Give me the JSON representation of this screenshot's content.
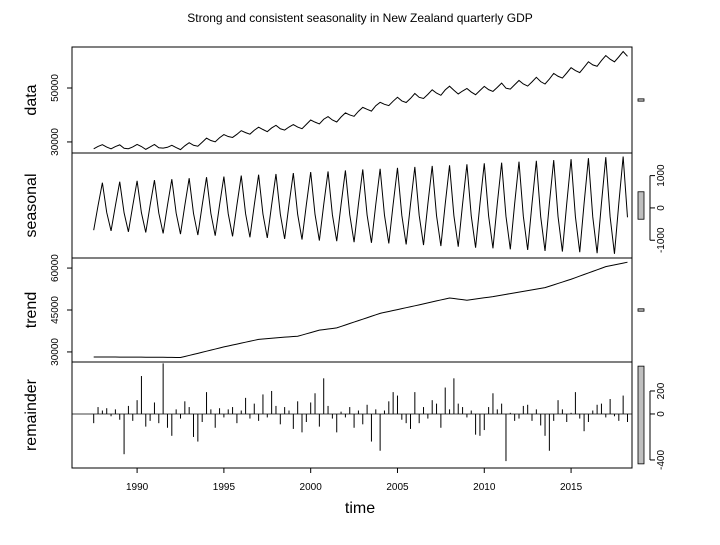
{
  "chart_data": {
    "type": "stl",
    "title": "Strong and consistent seasonality in New Zealand quarterly GDP",
    "xlabel": "time",
    "xlim": [
      1986.25,
      2018.51
    ],
    "xticks": [
      1990,
      1995,
      2000,
      2005,
      2010,
      2015
    ],
    "x": [
      1987.5,
      1987.75,
      1988,
      1988.25,
      1988.5,
      1988.75,
      1989,
      1989.25,
      1989.5,
      1989.75,
      1990,
      1990.25,
      1990.5,
      1990.75,
      1991,
      1991.25,
      1991.5,
      1991.75,
      1992,
      1992.25,
      1992.5,
      1992.75,
      1993,
      1993.25,
      1993.5,
      1993.75,
      1994,
      1994.25,
      1994.5,
      1994.75,
      1995,
      1995.25,
      1995.5,
      1995.75,
      1996,
      1996.25,
      1996.5,
      1996.75,
      1997,
      1997.25,
      1997.5,
      1997.75,
      1998,
      1998.25,
      1998.5,
      1998.75,
      1999,
      1999.25,
      1999.5,
      1999.75,
      2000,
      2000.25,
      2000.5,
      2000.75,
      2001,
      2001.25,
      2001.5,
      2001.75,
      2002,
      2002.25,
      2002.5,
      2002.75,
      2003,
      2003.25,
      2003.5,
      2003.75,
      2004,
      2004.25,
      2004.5,
      2004.75,
      2005,
      2005.25,
      2005.5,
      2005.75,
      2006,
      2006.25,
      2006.5,
      2006.75,
      2007,
      2007.25,
      2007.5,
      2007.75,
      2008,
      2008.25,
      2008.5,
      2008.75,
      2009,
      2009.25,
      2009.5,
      2009.75,
      2010,
      2010.25,
      2010.5,
      2010.75,
      2011,
      2011.25,
      2011.5,
      2011.75,
      2012,
      2012.25,
      2012.5,
      2012.75,
      2013,
      2013.25,
      2013.5,
      2013.75,
      2014,
      2014.25,
      2014.5,
      2014.75,
      2015,
      2015.25,
      2015.5,
      2015.75,
      2016,
      2016.25,
      2016.5,
      2016.75,
      2017,
      2017.25,
      2017.5,
      2017.75,
      2018,
      2018.25
    ],
    "panels": [
      {
        "type": "line",
        "label": "data",
        "axis_side": "left",
        "ylim": [
          25900,
          65200
        ],
        "yticks": [
          30000,
          50000
        ],
        "values": [
          27430,
          28320,
          29000,
          28090,
          27440,
          28280,
          28920,
          27660,
          27480,
          28150,
          29090,
          28310,
          27250,
          28130,
          29060,
          27850,
          27730,
          28020,
          28750,
          27910,
          27150,
          28570,
          29730,
          28760,
          28420,
          29890,
          31410,
          30520,
          30050,
          31560,
          32740,
          32000,
          31660,
          32820,
          34180,
          33450,
          32880,
          34340,
          35470,
          34610,
          33810,
          35190,
          36150,
          34890,
          34400,
          35530,
          36450,
          35510,
          34900,
          36510,
          38130,
          37340,
          36680,
          38410,
          39400,
          38150,
          37410,
          39240,
          40770,
          40010,
          39500,
          41340,
          42820,
          42100,
          41440,
          43430,
          44690,
          43950,
          43490,
          45110,
          46550,
          45210,
          44620,
          46140,
          47960,
          46540,
          46110,
          47630,
          49320,
          48100,
          47300,
          49300,
          50660,
          49170,
          47790,
          48880,
          49820,
          48500,
          47520,
          49080,
          50610,
          49390,
          48730,
          50240,
          51820,
          49930,
          49600,
          51200,
          52790,
          51480,
          50710,
          52270,
          53970,
          52360,
          51480,
          53310,
          55420,
          54350,
          53690,
          55560,
          57520,
          56480,
          55720,
          57680,
          59720,
          58560,
          58060,
          60170,
          62040,
          60670,
          59700,
          61540,
          63530,
          61740
        ]
      },
      {
        "type": "line",
        "label": "seasonal",
        "axis_side": "right",
        "ylim": [
          -1550,
          1700
        ],
        "yticks": [
          -1000,
          0,
          1000
        ],
        "values": [
          -690,
          70,
          780,
          -140,
          -710,
          70,
          810,
          -150,
          -740,
          70,
          840,
          -150,
          -760,
          80,
          860,
          -160,
          -790,
          80,
          890,
          -160,
          -810,
          80,
          920,
          -170,
          -840,
          80,
          950,
          -170,
          -860,
          90,
          970,
          -180,
          -880,
          90,
          1000,
          -180,
          -910,
          90,
          1030,
          -190,
          -930,
          90,
          1050,
          -190,
          -960,
          100,
          1080,
          -200,
          -980,
          100,
          1110,
          -200,
          -1010,
          100,
          1130,
          -210,
          -1030,
          100,
          1160,
          -210,
          -1060,
          110,
          1190,
          -220,
          -1080,
          110,
          1210,
          -220,
          -1100,
          110,
          1240,
          -230,
          -1130,
          110,
          1270,
          -230,
          -1150,
          120,
          1300,
          -240,
          -1180,
          120,
          1320,
          -240,
          -1200,
          120,
          1350,
          -250,
          -1230,
          120,
          1380,
          -250,
          -1250,
          130,
          1400,
          -260,
          -1280,
          130,
          1430,
          -260,
          -1300,
          130,
          1460,
          -270,
          -1330,
          130,
          1480,
          -270,
          -1350,
          130,
          1510,
          -270,
          -1370,
          140,
          1540,
          -280,
          -1400,
          140,
          1570,
          -280,
          -1420,
          140,
          1590,
          -290
        ]
      },
      {
        "type": "line",
        "label": "trend",
        "axis_side": "left",
        "ylim": [
          26400,
          63600
        ],
        "yticks": [
          30000,
          45000,
          60000
        ],
        "values": [
          28200,
          28190,
          28190,
          28180,
          28170,
          28170,
          28160,
          28160,
          28150,
          28140,
          28130,
          28130,
          28120,
          28110,
          28100,
          28090,
          28080,
          28060,
          28050,
          28030,
          28000,
          28380,
          28750,
          29130,
          29500,
          29880,
          30270,
          30650,
          31030,
          31420,
          31800,
          32140,
          32480,
          32810,
          33150,
          33490,
          33830,
          34160,
          34500,
          34630,
          34770,
          34900,
          35030,
          35170,
          35300,
          35400,
          35500,
          35600,
          36040,
          36480,
          36920,
          37360,
          37800,
          38000,
          38200,
          38400,
          38600,
          39120,
          39640,
          40160,
          40680,
          41200,
          41720,
          42240,
          42760,
          43280,
          43800,
          44140,
          44480,
          44810,
          45150,
          45490,
          45830,
          46160,
          46500,
          46850,
          47200,
          47550,
          47900,
          48250,
          48600,
          48950,
          49300,
          49100,
          48900,
          48700,
          48500,
          48720,
          48930,
          49150,
          49370,
          49580,
          49800,
          50070,
          50330,
          50600,
          50870,
          51130,
          51400,
          51670,
          51930,
          52200,
          52470,
          52730,
          53000,
          53500,
          54000,
          54500,
          55000,
          55500,
          56000,
          56560,
          57130,
          57690,
          58250,
          58810,
          59380,
          59940,
          60500,
          60820,
          61140,
          61460,
          61780,
          62100
        ]
      },
      {
        "type": "bar",
        "label": "remainder",
        "axis_side": "right",
        "ylim": [
          -470,
          452
        ],
        "yticks": [
          -400,
          0,
          200
        ],
        "values": [
          -80,
          60,
          30,
          50,
          -20,
          40,
          -50,
          -350,
          70,
          -60,
          120,
          330,
          -110,
          -60,
          100,
          -80,
          440,
          -120,
          -190,
          40,
          -40,
          110,
          60,
          -200,
          -240,
          -70,
          190,
          40,
          -120,
          50,
          -30,
          40,
          60,
          -80,
          30,
          140,
          -40,
          90,
          -60,
          170,
          -30,
          200,
          70,
          -90,
          60,
          30,
          -130,
          110,
          -160,
          -70,
          100,
          180,
          -110,
          310,
          70,
          -40,
          -160,
          20,
          -30,
          60,
          -120,
          30,
          -90,
          80,
          -240,
          40,
          -320,
          30,
          110,
          190,
          160,
          -50,
          -80,
          -130,
          190,
          -80,
          60,
          -40,
          120,
          90,
          -120,
          230,
          40,
          310,
          90,
          60,
          -30,
          30,
          -180,
          -190,
          -140,
          60,
          180,
          40,
          90,
          -410,
          10,
          -60,
          -40,
          70,
          80,
          -60,
          40,
          -100,
          -190,
          -320,
          -60,
          120,
          40,
          -70,
          10,
          190,
          -40,
          -150,
          -70,
          30,
          80,
          90,
          -30,
          130,
          -20,
          -60,
          160,
          -70
        ]
      }
    ]
  }
}
